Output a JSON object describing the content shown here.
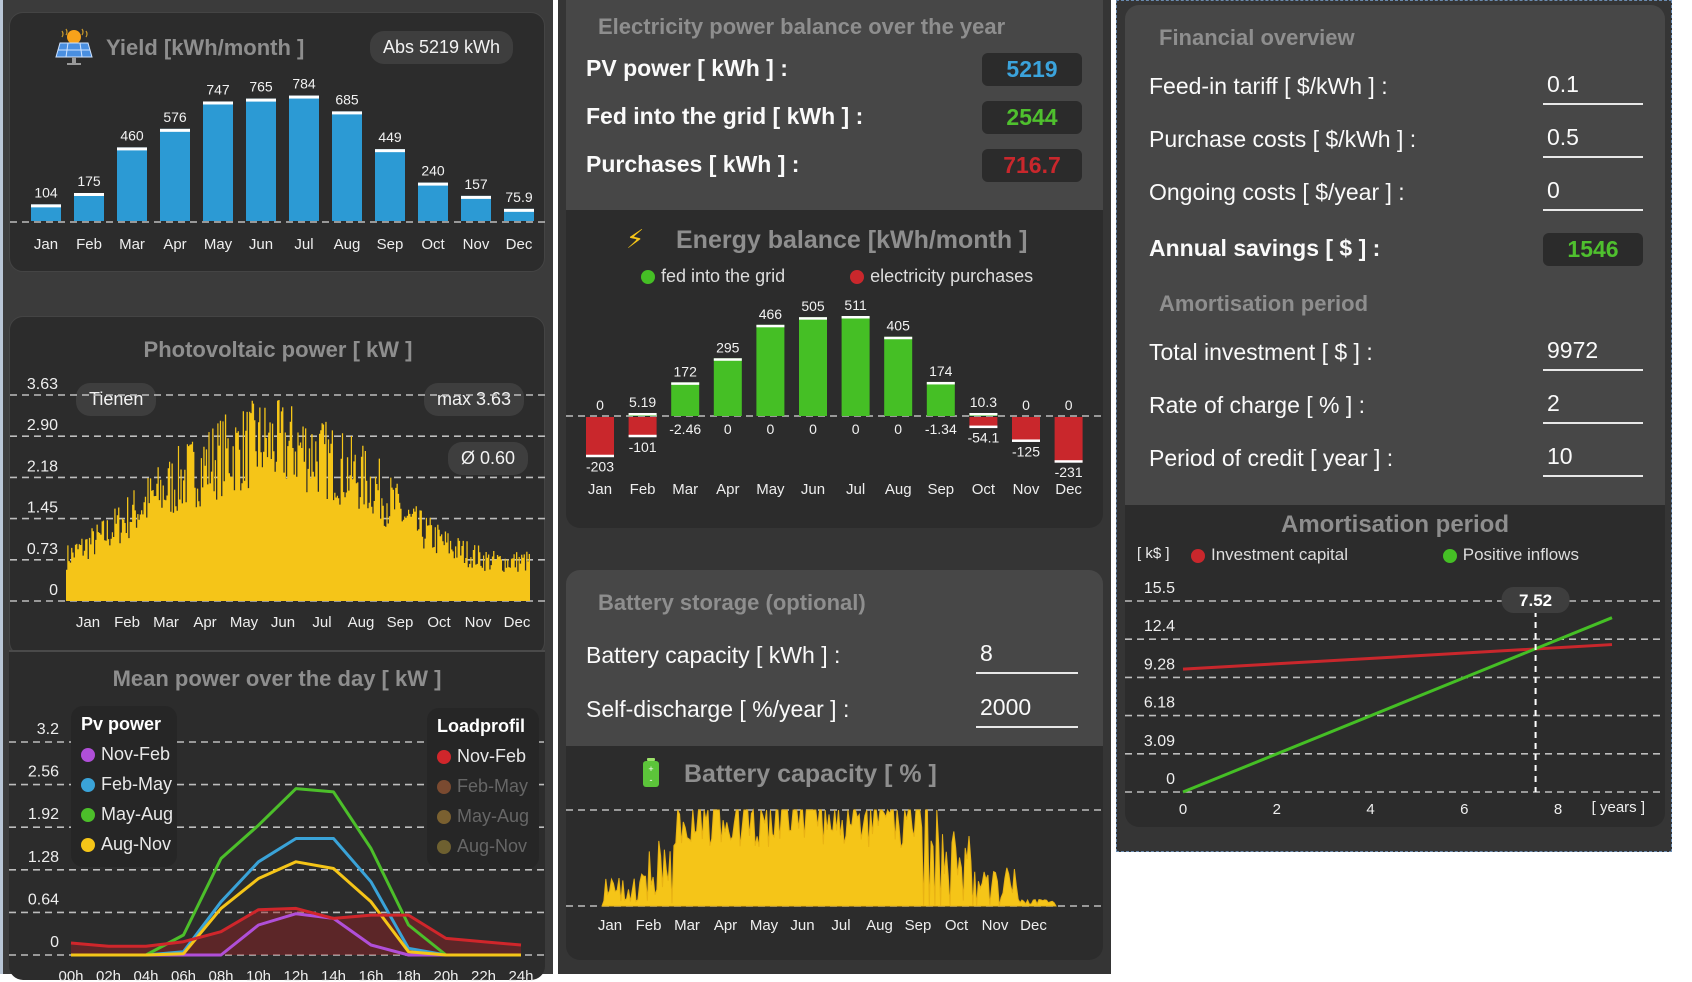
{
  "yield_card": {
    "title": "Yield  [kWh/month ]",
    "icon": "solar-panel-icon",
    "total_badge": "Abs  5219 kWh"
  },
  "pv_card": {
    "title": "Photovoltaic power  [ kW ]",
    "location_badge": "Tienen",
    "max_badge": "max 3.63",
    "avg_badge": "Ø 0.60"
  },
  "mean_card": {
    "title": "Mean power over the day  [ kW ]",
    "pv_legend_title": "Pv power",
    "load_legend_title": "Loadprofil"
  },
  "balance_card": {
    "title": "Electricity power balance over the year",
    "rows": [
      {
        "label": "PV power  [ kWh ] :",
        "value": "5219",
        "color": "#3ba3dc"
      },
      {
        "label": "Fed into the grid  [ kWh ] :",
        "value": "2544",
        "color": "#4fc02e"
      },
      {
        "label": "Purchases  [ kWh ] :",
        "value": "716.7",
        "color": "#c9272c"
      }
    ]
  },
  "energy_card": {
    "title": "Energy balance  [kWh/month ]",
    "icon": "lightning-icon"
  },
  "battery_card": {
    "title": "Battery storage (optional)",
    "rows": [
      {
        "label": "Battery capacity  [ kWh ] :",
        "value": "8"
      },
      {
        "label": "Self-discharge  [ %/year ] :",
        "value": "2000"
      }
    ]
  },
  "battery_chart_card": {
    "title": "Battery capacity  [ % ]",
    "icon": "battery-icon"
  },
  "financial_card": {
    "title": "Financial overview",
    "rows": [
      {
        "label": "Feed-in tariff  [ $/kWh ] :",
        "value": "0.1"
      },
      {
        "label": "Purchase costs  [ $/kWh ] :",
        "value": "0.5"
      },
      {
        "label": "Ongoing costs  [ $/year ] :",
        "value": "0"
      }
    ],
    "savings_label": "Annual savings  [ $ ] :",
    "savings_value": "1546",
    "amort_title": "Amortisation period",
    "amort_rows": [
      {
        "label": "Total investment  [ $ ] :",
        "value": "9972"
      },
      {
        "label": "Rate of charge  [ % ] :",
        "value": "2"
      },
      {
        "label": "Period of credit  [ year ] :",
        "value": "10"
      }
    ]
  },
  "amort_chart_card": {
    "title": "Amortisation period"
  },
  "colors": {
    "yield_bar": "#2c9ad4",
    "pv_fill": "#f5c518",
    "green": "#45bf25",
    "red": "#c9272c"
  },
  "chart_data": [
    {
      "id": "yield",
      "type": "bar",
      "title": "Yield [kWh/month]",
      "categories": [
        "Jan",
        "Feb",
        "Mar",
        "Apr",
        "May",
        "Jun",
        "Jul",
        "Aug",
        "Sep",
        "Oct",
        "Nov",
        "Dec"
      ],
      "values": [
        104,
        175,
        460,
        576,
        747,
        765,
        784,
        685,
        449,
        240,
        157,
        75.9
      ],
      "labels": [
        "104",
        "175",
        "460",
        "576",
        "747",
        "765",
        "784",
        "685",
        "449",
        "240",
        "157",
        "75.9"
      ],
      "ylim": [
        0,
        800
      ]
    },
    {
      "id": "pv_power",
      "type": "area",
      "title": "Photovoltaic power [ kW ]",
      "yticks": [
        "3.63",
        "2.90",
        "2.18",
        "1.45",
        "0.73",
        "0"
      ],
      "ylim": [
        0,
        3.63
      ],
      "categories": [
        "Jan",
        "Feb",
        "Mar",
        "Apr",
        "May",
        "Jun",
        "Jul",
        "Aug",
        "Sep",
        "Oct",
        "Nov",
        "Dec"
      ],
      "envelope_monthly_max": [
        1.0,
        1.5,
        2.2,
        2.8,
        3.3,
        3.6,
        3.5,
        3.1,
        2.6,
        1.7,
        1.2,
        0.9
      ],
      "max": 3.63,
      "mean": 0.6
    },
    {
      "id": "mean_day",
      "type": "line",
      "title": "Mean power over the day [ kW ]",
      "x": [
        "00h",
        "02h",
        "04h",
        "06h",
        "08h",
        "10h",
        "12h",
        "14h",
        "16h",
        "18h",
        "20h",
        "22h",
        "24h"
      ],
      "yticks": [
        "3.2",
        "2.56",
        "1.92",
        "1.28",
        "0.64",
        "0"
      ],
      "ylim": [
        0,
        3.2
      ],
      "series": [
        {
          "name": "Nov-Feb",
          "group": "Pv power",
          "color": "#b04fd8",
          "values": [
            0,
            0,
            0,
            0,
            0,
            0.45,
            0.62,
            0.55,
            0.15,
            0,
            0,
            0,
            0
          ]
        },
        {
          "name": "Feb-May",
          "group": "Pv power",
          "color": "#3aa3d8",
          "values": [
            0,
            0,
            0,
            0.05,
            0.8,
            1.4,
            1.75,
            1.75,
            1.1,
            0.1,
            0,
            0,
            0
          ]
        },
        {
          "name": "May-Aug",
          "group": "Pv power",
          "color": "#4cbf2a",
          "values": [
            0,
            0,
            0,
            0.3,
            1.45,
            1.95,
            2.5,
            2.45,
            1.6,
            0.45,
            0,
            0,
            0
          ]
        },
        {
          "name": "Aug-Nov",
          "group": "Pv power",
          "color": "#f5c518",
          "values": [
            0,
            0,
            0,
            0.02,
            0.7,
            1.15,
            1.4,
            1.3,
            0.8,
            0.05,
            0,
            0,
            0
          ]
        },
        {
          "name": "Nov-Feb",
          "group": "Loadprofil",
          "color": "#d0262b",
          "values": [
            0.18,
            0.13,
            0.13,
            0.2,
            0.35,
            0.68,
            0.7,
            0.55,
            0.6,
            0.6,
            0.25,
            0.2,
            0.15
          ],
          "visible": true
        },
        {
          "name": "Feb-May",
          "group": "Loadprofil",
          "color": "#7a4a30",
          "visible": false
        },
        {
          "name": "May-Aug",
          "group": "Loadprofil",
          "color": "#7a6030",
          "visible": false
        },
        {
          "name": "Aug-Nov",
          "group": "Loadprofil",
          "color": "#6e6030",
          "visible": false
        }
      ]
    },
    {
      "id": "energy_balance",
      "type": "bar",
      "title": "Energy balance [kWh/month]",
      "categories": [
        "Jan",
        "Feb",
        "Mar",
        "Apr",
        "May",
        "Jun",
        "Jul",
        "Aug",
        "Sep",
        "Oct",
        "Nov",
        "Dec"
      ],
      "series": [
        {
          "name": "fed into the grid",
          "color": "#45bf25",
          "values": [
            0,
            5.19,
            172,
            295,
            466,
            505,
            511,
            405,
            174,
            10.3,
            0,
            0
          ],
          "labels": [
            "0",
            "5.19",
            "172",
            "295",
            "466",
            "505",
            "511",
            "405",
            "174",
            "10.3",
            "0",
            "0"
          ]
        },
        {
          "name": "electricity purchases",
          "color": "#c9272c",
          "values": [
            -203,
            -101,
            -2.46,
            0,
            0,
            0,
            0,
            0,
            -1.34,
            -54.1,
            -125,
            -231
          ],
          "labels": [
            "-203",
            "-101",
            "-2.46",
            "0",
            "0",
            "0",
            "0",
            "0",
            "-1.34",
            "-54.1",
            "-125",
            "-231"
          ]
        }
      ],
      "ylim": [
        -250,
        520
      ]
    },
    {
      "id": "battery_capacity",
      "type": "area",
      "title": "Battery capacity [ % ]",
      "categories": [
        "Jan",
        "Feb",
        "Mar",
        "Apr",
        "May",
        "Jun",
        "Jul",
        "Aug",
        "Sep",
        "Oct",
        "Nov",
        "Dec"
      ],
      "envelope_monthly_max": [
        30,
        70,
        100,
        100,
        100,
        100,
        100,
        100,
        100,
        80,
        40,
        10
      ],
      "ylim": [
        0,
        100
      ]
    },
    {
      "id": "amortisation",
      "type": "line",
      "title": "Amortisation period",
      "ylabel": "[ k$ ]",
      "xlabel": "[ years ]",
      "xticks": [
        "0",
        "2",
        "4",
        "6",
        "8"
      ],
      "yticks": [
        "15.5",
        "12.4",
        "9.28",
        "6.18",
        "3.09",
        "0"
      ],
      "xlim": [
        0,
        10
      ],
      "ylim": [
        0,
        15.5
      ],
      "series": [
        {
          "name": "Investment capital",
          "color": "#c9272c",
          "x": [
            0,
            10
          ],
          "y": [
            9.97,
            12.15
          ]
        },
        {
          "name": "Positive inflows",
          "color": "#45bf25",
          "x": [
            0,
            10
          ],
          "y": [
            0,
            15.46
          ]
        }
      ],
      "crossover_label": "7.52",
      "crossover_x": 7.52
    }
  ]
}
